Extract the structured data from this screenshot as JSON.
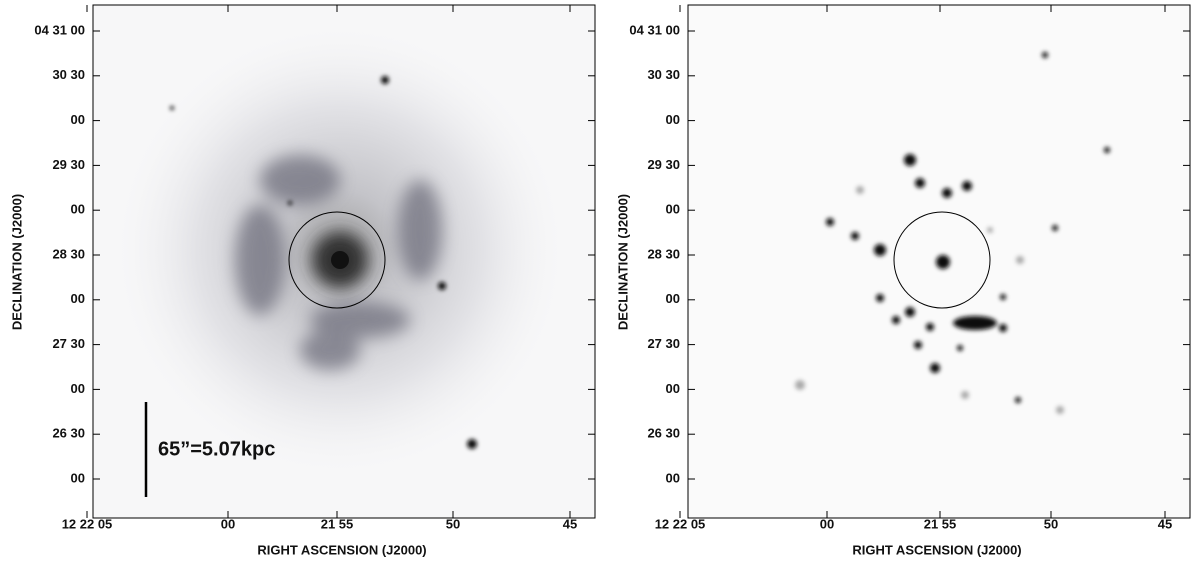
{
  "panels": [
    {
      "yticks": [
        "04 31 00",
        "30 30",
        "00",
        "29 30",
        "00",
        "28 30",
        "00",
        "27 30",
        "00",
        "26 30",
        "00"
      ],
      "xticks": [
        "12 22 05",
        "00",
        "21 55",
        "50",
        "45"
      ],
      "xlabel": "RIGHT ASCENSION (J2000)",
      "ylabel": "DECLINATION (J2000)",
      "annotation": "65”=5.07kpc"
    },
    {
      "yticks": [
        "04 31 00",
        "30 30",
        "00",
        "29 30",
        "00",
        "28 30",
        "00",
        "27 30",
        "00",
        "26 30",
        "00"
      ],
      "xticks": [
        "12 22 05",
        "00",
        "21 55",
        "50",
        "45"
      ],
      "xlabel": "RIGHT ASCENSION (J2000)",
      "ylabel": "DECLINATION (J2000)"
    }
  ]
}
